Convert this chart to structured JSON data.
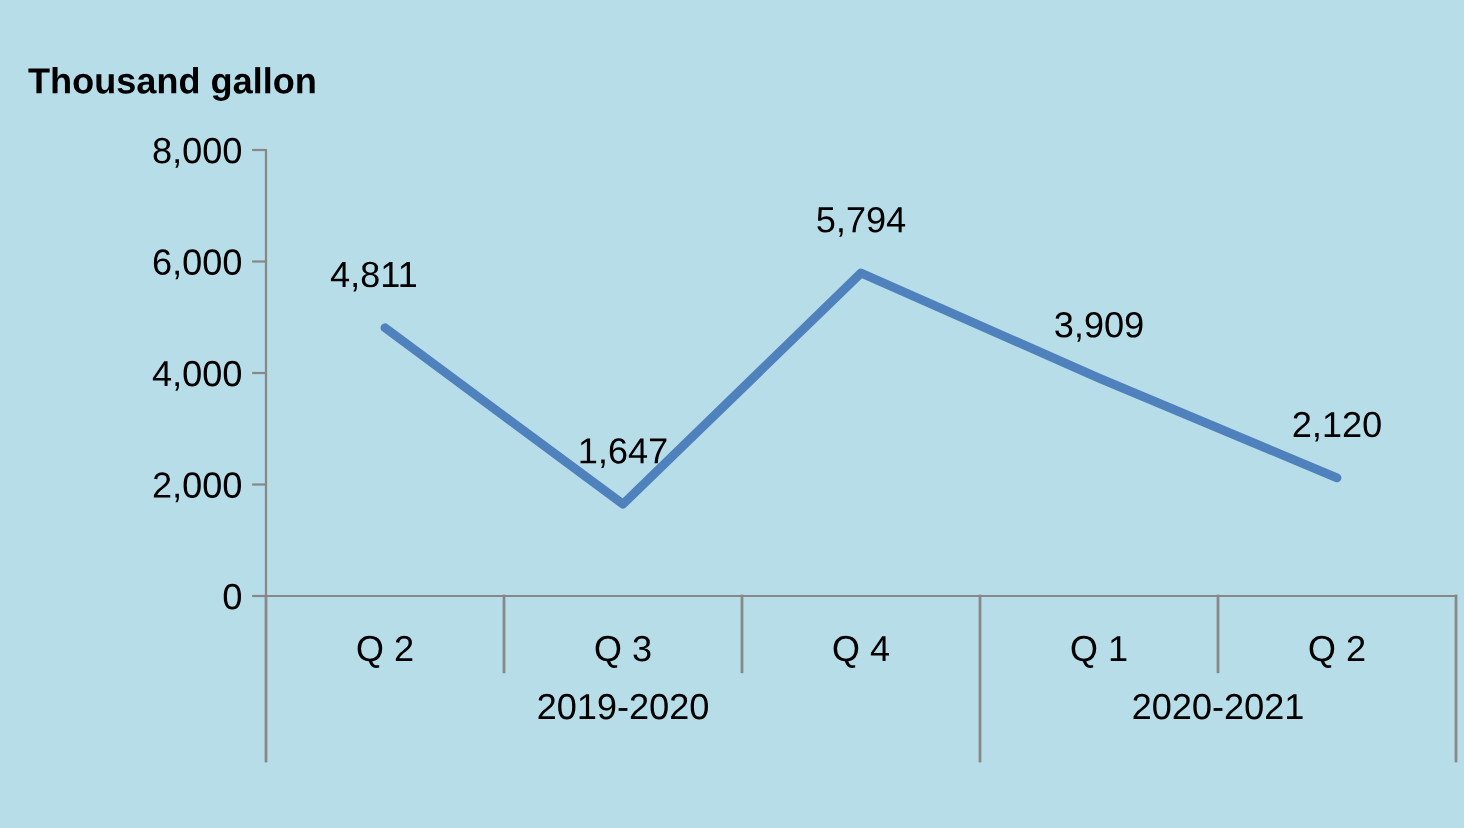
{
  "chart_data": {
    "type": "line",
    "ylabel": "Thousand gallon",
    "categories": [
      "Q 2",
      "Q 3",
      "Q 4",
      "Q 1",
      "Q 2"
    ],
    "series": [
      {
        "color": "#4f81bd",
        "values": [
          4811,
          1647,
          5794,
          3909,
          2120
        ],
        "value_labels": [
          "4,811",
          "1,647",
          "5,794",
          "3,909",
          "2,120"
        ]
      }
    ],
    "ylim": [
      0,
      8000
    ],
    "yticks": [
      {
        "value": 0,
        "label": "0"
      },
      {
        "value": 2000,
        "label": "2,000"
      },
      {
        "value": 4000,
        "label": "4,000"
      },
      {
        "value": 6000,
        "label": "6,000"
      },
      {
        "value": 8000,
        "label": "8,000"
      }
    ],
    "grid": false,
    "marker": "none",
    "line_style": "solid",
    "annotations": [
      "2019-2020",
      "2020-2021"
    ]
  }
}
